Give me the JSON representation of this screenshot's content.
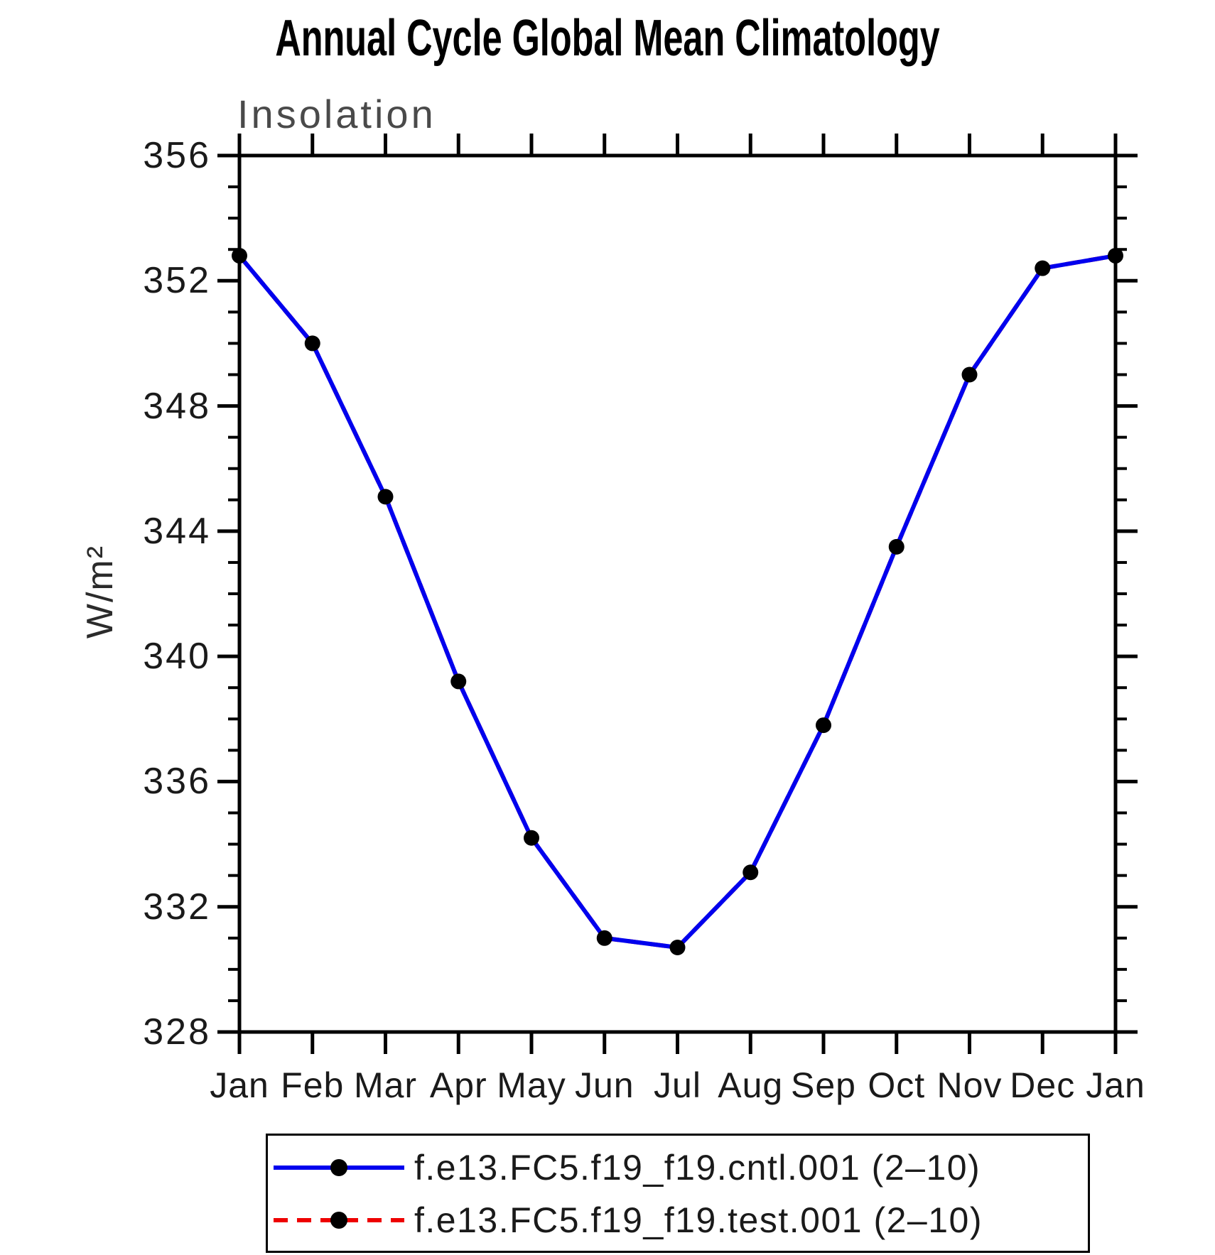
{
  "chart_data": {
    "type": "line",
    "title": "Annual Cycle Global Mean Climatology",
    "subtitle": "Insolation",
    "ylabel": "W/m²",
    "xlabel": "",
    "x_categories": [
      "Jan",
      "Feb",
      "Mar",
      "Apr",
      "May",
      "Jun",
      "Jul",
      "Aug",
      "Sep",
      "Oct",
      "Nov",
      "Dec",
      "Jan"
    ],
    "ylim": [
      328,
      356
    ],
    "y_major_ticks": [
      356,
      352,
      348,
      344,
      340,
      336,
      332,
      328
    ],
    "y_minor_tick_step": 1,
    "grid": false,
    "legend_position": "bottom",
    "frame_color": "#000000",
    "marker_color": "#000000",
    "series": [
      {
        "name": "f.e13.FC5.f19_f19.cntl.001 (2–10)",
        "color": "#0000ee",
        "line_style": "solid",
        "marker": "circle",
        "values": [
          352.8,
          350.0,
          345.1,
          339.2,
          334.2,
          331.0,
          330.7,
          333.1,
          337.8,
          343.5,
          349.0,
          352.4,
          352.8
        ]
      },
      {
        "name": "f.e13.FC5.f19_f19.test.001 (2–10)",
        "color": "#ee0000",
        "line_style": "dashed",
        "marker": "circle",
        "values": [
          352.8,
          350.0,
          345.1,
          339.2,
          334.2,
          331.0,
          330.7,
          333.1,
          337.8,
          343.5,
          349.0,
          352.4,
          352.8
        ]
      }
    ]
  }
}
